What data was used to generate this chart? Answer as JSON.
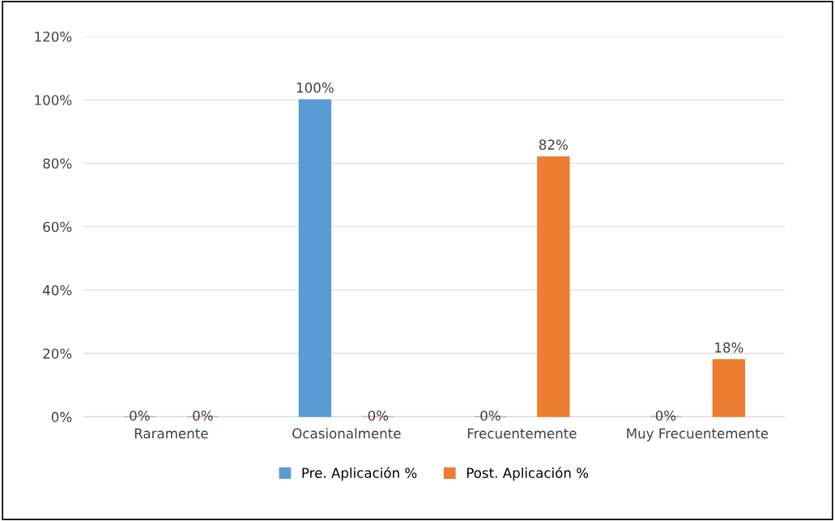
{
  "chart_data": {
    "type": "bar",
    "categories": [
      "Raramente",
      "Ocasionalmente",
      "Frecuentemente",
      "Muy Frecuentemente"
    ],
    "series": [
      {
        "name": "Pre. Aplicación %",
        "color": "#5b9bd5",
        "values": [
          0,
          100,
          0,
          0
        ],
        "value_labels": [
          "0%",
          "100%",
          "0%",
          "0%"
        ]
      },
      {
        "name": "Post. Aplicación %",
        "color": "#ed7d31",
        "values": [
          0,
          0,
          82,
          18
        ],
        "value_labels": [
          "0%",
          "0%",
          "82%",
          "18%"
        ]
      }
    ],
    "ylim": [
      0,
      120
    ],
    "yticks": [
      {
        "value": 0,
        "label": "0%"
      },
      {
        "value": 20,
        "label": "20%"
      },
      {
        "value": 40,
        "label": "40%"
      },
      {
        "value": 60,
        "label": "60%"
      },
      {
        "value": 80,
        "label": "80%"
      },
      {
        "value": 100,
        "label": "100%"
      },
      {
        "value": 120,
        "label": "120%"
      }
    ],
    "grid": "y",
    "legend": "bottom"
  }
}
